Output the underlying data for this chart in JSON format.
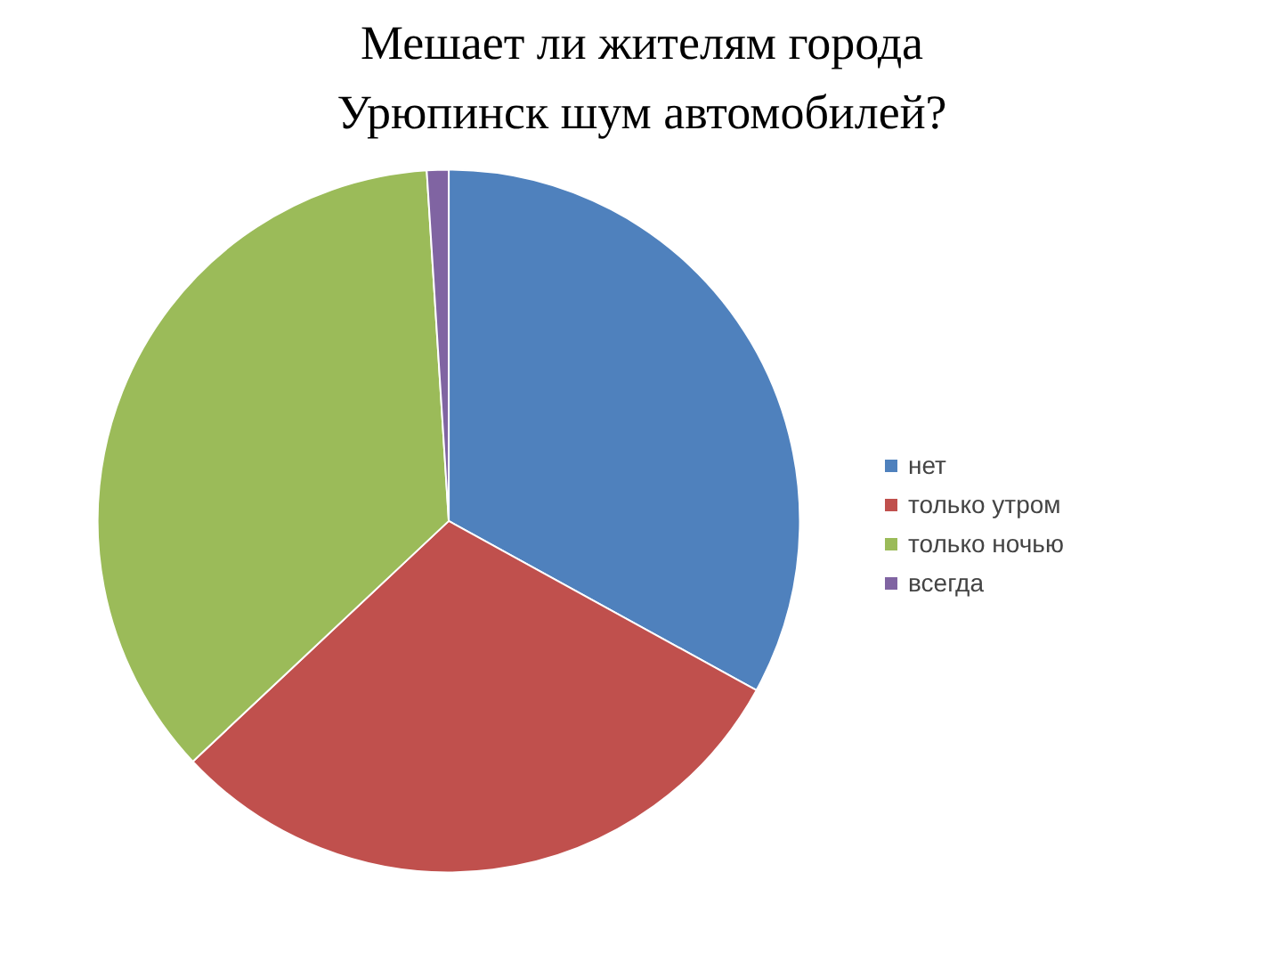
{
  "chart_data": {
    "type": "pie",
    "title": "Мешает ли жителям города\nУрюпинск шум автомобилей?",
    "categories": [
      "нет",
      "только утром",
      "только ночью",
      "всегда"
    ],
    "values": [
      33,
      30,
      36,
      1
    ],
    "colors": [
      "#4f81bd",
      "#c0504d",
      "#9bbb59",
      "#8064a2"
    ],
    "legend": "right"
  }
}
